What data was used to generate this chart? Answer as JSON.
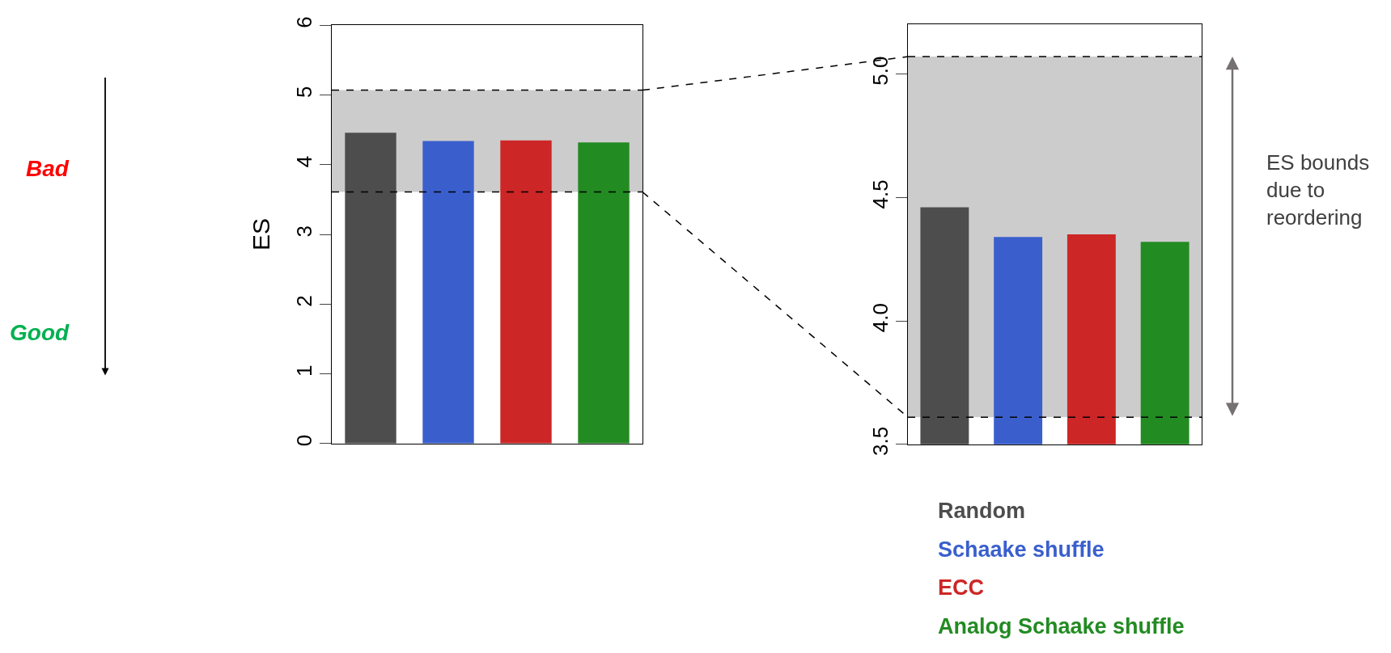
{
  "chart_data": [
    {
      "type": "bar",
      "ylabel": "ES",
      "categories": [
        null
      ],
      "series": [
        {
          "color": "#4d4d4d",
          "values": [
            4.46
          ]
        },
        {
          "color": "#3a5fcd",
          "values": [
            4.34
          ]
        },
        {
          "color": "#cd2626",
          "values": [
            4.35
          ]
        },
        {
          "color": "#228b22",
          "values": [
            4.32
          ]
        }
      ],
      "ylim": [
        0,
        6
      ],
      "yticks": [
        0,
        1,
        2,
        3,
        4,
        5,
        6
      ],
      "bands": [
        {
          "axis": "y",
          "from": 3.61,
          "to": 5.07,
          "color": "#cccccc"
        }
      ],
      "ref_lines": [
        {
          "axis": "y",
          "value": 3.61,
          "line_style": "dashed"
        },
        {
          "axis": "y",
          "value": 5.07,
          "line_style": "dashed"
        }
      ],
      "annotations": [
        "Bad",
        "Good"
      ],
      "tick_labels": "y",
      "grid": false,
      "legend": false
    },
    {
      "type": "bar",
      "categories": [
        null
      ],
      "series": [
        {
          "name": "Random",
          "color": "#4d4d4d",
          "values": [
            4.46
          ]
        },
        {
          "name": "Schaake shuffle",
          "color": "#3a5fcd",
          "values": [
            4.34
          ]
        },
        {
          "name": "ECC",
          "color": "#cd2626",
          "values": [
            4.35
          ]
        },
        {
          "name": "Analog Schaake shuffle",
          "color": "#228b22",
          "values": [
            4.32
          ]
        }
      ],
      "ylim": [
        3.5,
        5.2
      ],
      "yticks": [
        {
          "value": 3.5,
          "label": "3.5"
        },
        {
          "value": 4.0,
          "label": "4.0"
        },
        {
          "value": 4.5,
          "label": "4.5"
        },
        {
          "value": 5.0,
          "label": "5.0"
        }
      ],
      "bands": [
        {
          "axis": "y",
          "from": 3.61,
          "to": 5.07,
          "color": "#cccccc"
        }
      ],
      "ref_lines": [
        {
          "axis": "y",
          "value": 3.61,
          "line_style": "dashed"
        },
        {
          "axis": "y",
          "value": 5.07,
          "line_style": "dashed"
        }
      ],
      "annotations": [
        "ES bounds due to reordering"
      ],
      "tick_labels": "y",
      "grid": false,
      "legend": "bottom"
    }
  ]
}
